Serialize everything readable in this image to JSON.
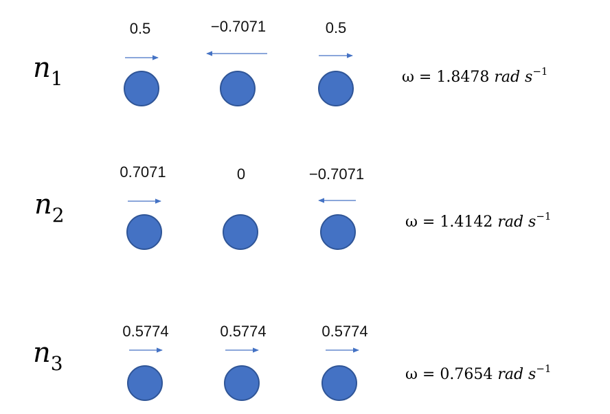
{
  "colors": {
    "mass_fill": "#4472c4",
    "mass_stroke": "#2f5597",
    "arrow": "#4472c4"
  },
  "modes": [
    {
      "mode_symbol": "n",
      "mode_index": "1",
      "amplitudes": [
        "0.5",
        "−0.7071",
        "0.5"
      ],
      "arrow_directions": [
        "right",
        "left",
        "right"
      ],
      "frequency_text": "ω = 1.8478 ",
      "frequency_unit": "rad s",
      "frequency_exponent": "−1"
    },
    {
      "mode_symbol": "n",
      "mode_index": "2",
      "amplitudes": [
        "0.7071",
        "0",
        "−0.7071"
      ],
      "arrow_directions": [
        "right",
        "none",
        "left"
      ],
      "frequency_text": "ω = 1.4142 ",
      "frequency_unit": "rad s",
      "frequency_exponent": "−1"
    },
    {
      "mode_symbol": "n",
      "mode_index": "3",
      "amplitudes": [
        "0.5774",
        "0.5774",
        "0.5774"
      ],
      "arrow_directions": [
        "right",
        "right",
        "right"
      ],
      "frequency_text": "ω = 0.7654 ",
      "frequency_unit": "rad s",
      "frequency_exponent": "−1"
    }
  ]
}
